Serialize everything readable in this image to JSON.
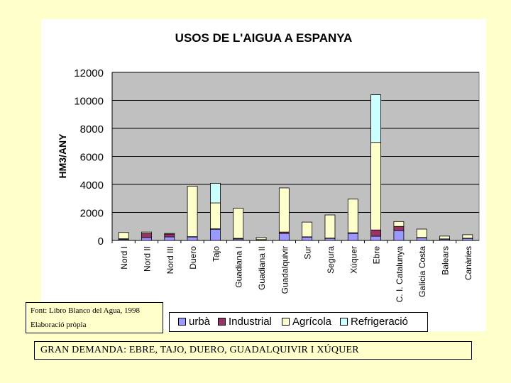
{
  "source_box": {
    "line1": "Font: Libro Blanco del Agua, 1998",
    "line2": "Elaboració pròpia"
  },
  "caption": "GRAN DEMANDA: EBRE, TAJO, DUERO, GUADALQUIVIR I XÚQUER",
  "colors": {
    "background": "#FFFFCC",
    "plot_area": "#C0C0C0",
    "urba": "#9999FF",
    "industrial": "#993366",
    "agricola": "#FFFFCC",
    "refrigeracio": "#CCFFFF"
  },
  "chart_data": {
    "type": "bar",
    "stacked": true,
    "title": "USOS DE L'AIGUA A ESPANYA",
    "xlabel": "",
    "ylabel": "HM3/ANY",
    "ylim": [
      0,
      12000
    ],
    "yticks": [
      0,
      2000,
      4000,
      6000,
      8000,
      10000,
      12000
    ],
    "grid": true,
    "legend_position": "bottom",
    "categories": [
      "Nord I",
      "Nord II",
      "Nord III",
      "Duero",
      "Tajo",
      "Guadiana I",
      "Guadiana II",
      "Guadalquivir",
      "Sur",
      "Segura",
      "Xúquer",
      "Ebre",
      "C. I. Catalunya",
      "Galícia Costa",
      "Balears",
      "Canàries"
    ],
    "series": [
      {
        "name": "urbà",
        "color": "#9999FF",
        "values": [
          70,
          200,
          250,
          250,
          800,
          100,
          50,
          500,
          250,
          150,
          500,
          300,
          700,
          200,
          100,
          150
        ]
      },
      {
        "name": "Industrial",
        "color": "#993366",
        "values": [
          50,
          300,
          200,
          20,
          30,
          50,
          10,
          100,
          10,
          20,
          50,
          450,
          300,
          10,
          10,
          10
        ]
      },
      {
        "name": "Agrícola",
        "color": "#FFFFCC",
        "values": [
          450,
          100,
          50,
          3600,
          1850,
          2150,
          150,
          3150,
          1050,
          1650,
          2400,
          6250,
          350,
          600,
          200,
          250
        ]
      },
      {
        "name": "Refrigeració",
        "color": "#CCFFFF",
        "values": [
          0,
          0,
          0,
          0,
          1400,
          0,
          0,
          0,
          0,
          0,
          0,
          3400,
          0,
          0,
          0,
          0
        ]
      }
    ]
  }
}
